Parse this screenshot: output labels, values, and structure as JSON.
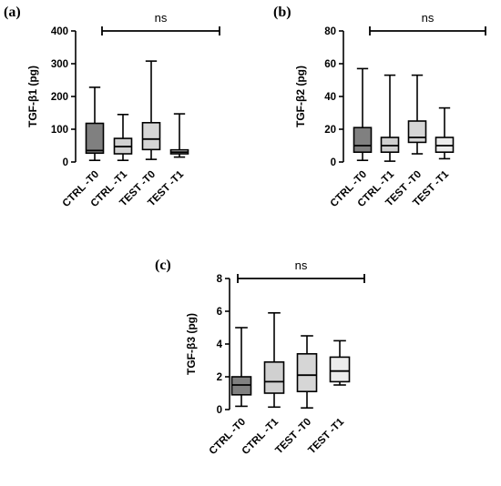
{
  "chart_data": [
    {
      "type": "box",
      "panel_label": "(a)",
      "ylabel": "TGF-β1 (pg)",
      "ylim": [
        0,
        400
      ],
      "yticks": [
        0,
        100,
        200,
        300,
        400
      ],
      "categories": [
        "CTRL -T0",
        "CTRL -T1",
        "TEST -T0",
        "TEST -T1"
      ],
      "colors": [
        "#808080",
        "#d0d0d0",
        "#d6d6d6",
        "#ececec"
      ],
      "boxes": [
        {
          "min": 5,
          "q1": 27,
          "median": 35,
          "q3": 118,
          "max": 228
        },
        {
          "min": 5,
          "q1": 25,
          "median": 47,
          "q3": 72,
          "max": 145
        },
        {
          "min": 8,
          "q1": 38,
          "median": 70,
          "q3": 120,
          "max": 308
        },
        {
          "min": 15,
          "q1": 25,
          "median": 30,
          "q3": 37,
          "max": 147
        }
      ],
      "significance": "ns"
    },
    {
      "type": "box",
      "panel_label": "(b)",
      "ylabel": "TGF-β2 (pg)",
      "ylim": [
        0,
        80
      ],
      "yticks": [
        0,
        20,
        40,
        60,
        80
      ],
      "categories": [
        "CTRL -T0",
        "CTRL -T1",
        "TEST -T0",
        "TEST -T1"
      ],
      "colors": [
        "#808080",
        "#d0d0d0",
        "#d6d6d6",
        "#ececec"
      ],
      "boxes": [
        {
          "min": 1,
          "q1": 6,
          "median": 10,
          "q3": 21,
          "max": 57
        },
        {
          "min": 0.5,
          "q1": 6,
          "median": 10,
          "q3": 15,
          "max": 53
        },
        {
          "min": 5,
          "q1": 12,
          "median": 15,
          "q3": 25,
          "max": 53
        },
        {
          "min": 2,
          "q1": 6,
          "median": 10,
          "q3": 15,
          "max": 33
        }
      ],
      "significance": "ns"
    },
    {
      "type": "box",
      "panel_label": "(c)",
      "ylabel": "TGF-β3 (pg)",
      "ylim": [
        0,
        8
      ],
      "yticks": [
        0,
        2,
        4,
        6,
        8
      ],
      "categories": [
        "CTRL -T0",
        "CTRL -T1",
        "TEST -T0",
        "TEST -T1"
      ],
      "colors": [
        "#808080",
        "#d0d0d0",
        "#d6d6d6",
        "#ececec"
      ],
      "boxes": [
        {
          "min": 0.2,
          "q1": 0.9,
          "median": 1.5,
          "q3": 2.0,
          "max": 5.0
        },
        {
          "min": 0.15,
          "q1": 1.0,
          "median": 1.7,
          "q3": 2.9,
          "max": 5.9
        },
        {
          "min": 0.1,
          "q1": 1.1,
          "median": 2.1,
          "q3": 3.4,
          "max": 4.5
        },
        {
          "min": 1.5,
          "q1": 1.7,
          "median": 2.35,
          "q3": 3.2,
          "max": 4.2
        }
      ],
      "significance": "ns"
    }
  ]
}
